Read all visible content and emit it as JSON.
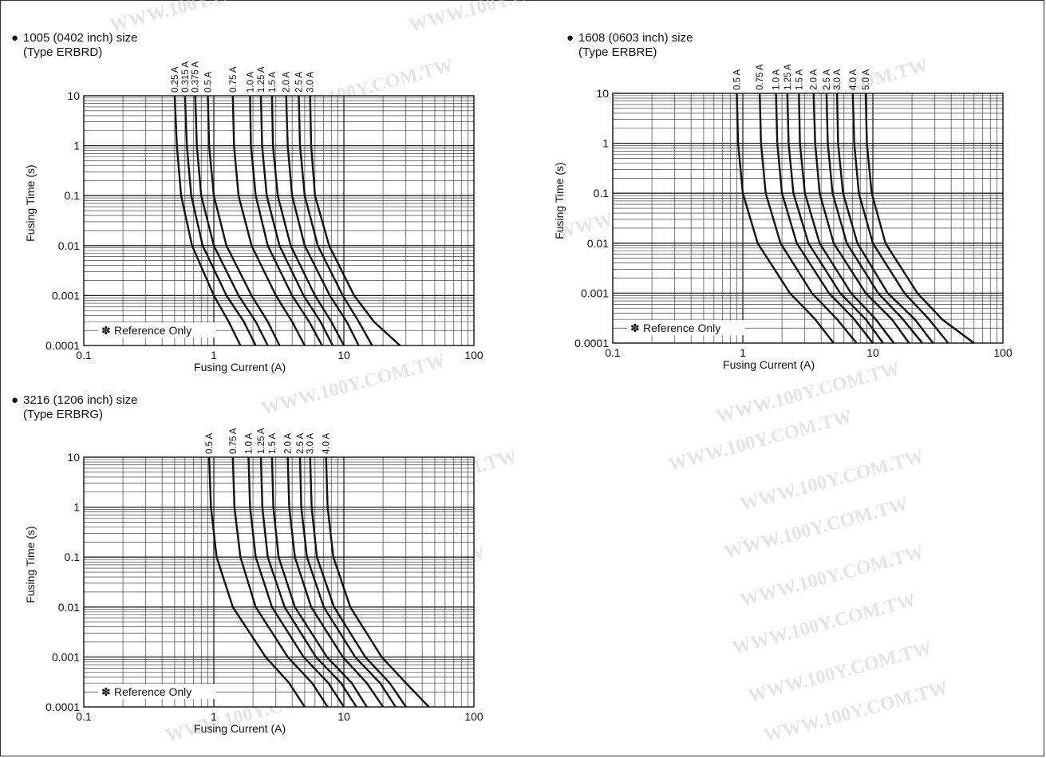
{
  "watermark": {
    "text": "WWW.100Y.COM.TW",
    "color": "#cfcfcf"
  },
  "common": {
    "xlabel": "Fusing Current (A)",
    "ylabel": "Fusing Time (s)",
    "note": "Reference Only",
    "note_mark": "✽",
    "bullet": "●",
    "x_ticks": [
      "0.1",
      "1",
      "10",
      "100"
    ],
    "y_ticks": [
      "10",
      "1",
      "0.1",
      "0.01",
      "0.001",
      "0.0001"
    ]
  },
  "chart_data": [
    {
      "type": "line",
      "title": "1005 (0402 inch) size",
      "subtitle": "(Type ERBRD)",
      "xlabel": "Fusing Current (A)",
      "ylabel": "Fusing Time (s)",
      "x_scale": "log",
      "y_scale": "log",
      "xlim": [
        0.1,
        100
      ],
      "ylim": [
        0.0001,
        10
      ],
      "grid": true,
      "series": [
        {
          "name": "0.25 A",
          "points": [
            [
              0.5,
              10
            ],
            [
              0.52,
              1
            ],
            [
              0.56,
              0.1
            ],
            [
              0.68,
              0.01
            ],
            [
              1.0,
              0.001
            ],
            [
              1.3,
              0.0003
            ],
            [
              1.6,
              0.0001
            ]
          ]
        },
        {
          "name": "0.315 A",
          "points": [
            [
              0.6,
              10
            ],
            [
              0.62,
              1
            ],
            [
              0.67,
              0.1
            ],
            [
              0.82,
              0.01
            ],
            [
              1.25,
              0.001
            ],
            [
              1.7,
              0.0003
            ],
            [
              2.1,
              0.0001
            ]
          ]
        },
        {
          "name": "0.375 A",
          "points": [
            [
              0.72,
              10
            ],
            [
              0.74,
              1
            ],
            [
              0.8,
              0.1
            ],
            [
              1.0,
              0.01
            ],
            [
              1.55,
              0.001
            ],
            [
              2.1,
              0.0003
            ],
            [
              2.6,
              0.0001
            ]
          ]
        },
        {
          "name": "0.5 A",
          "points": [
            [
              0.9,
              10
            ],
            [
              0.92,
              1
            ],
            [
              1.0,
              0.1
            ],
            [
              1.25,
              0.01
            ],
            [
              1.95,
              0.001
            ],
            [
              2.6,
              0.0003
            ],
            [
              3.2,
              0.0001
            ]
          ]
        },
        {
          "name": "0.75 A",
          "points": [
            [
              1.4,
              10
            ],
            [
              1.43,
              1
            ],
            [
              1.55,
              0.1
            ],
            [
              1.95,
              0.01
            ],
            [
              3.0,
              0.001
            ],
            [
              4.0,
              0.0003
            ],
            [
              5.0,
              0.0001
            ]
          ]
        },
        {
          "name": "1.0 A",
          "points": [
            [
              1.9,
              10
            ],
            [
              1.93,
              1
            ],
            [
              2.1,
              0.1
            ],
            [
              2.6,
              0.01
            ],
            [
              4.0,
              0.001
            ],
            [
              5.4,
              0.0003
            ],
            [
              6.8,
              0.0001
            ]
          ]
        },
        {
          "name": "1.25 A",
          "points": [
            [
              2.3,
              10
            ],
            [
              2.35,
              1
            ],
            [
              2.55,
              0.1
            ],
            [
              3.2,
              0.01
            ],
            [
              4.9,
              0.001
            ],
            [
              6.6,
              0.0003
            ],
            [
              8.2,
              0.0001
            ]
          ]
        },
        {
          "name": "1.5 A",
          "points": [
            [
              2.8,
              10
            ],
            [
              2.85,
              1
            ],
            [
              3.1,
              0.1
            ],
            [
              3.9,
              0.01
            ],
            [
              6.0,
              0.001
            ],
            [
              8.0,
              0.0003
            ],
            [
              10,
              0.0001
            ]
          ]
        },
        {
          "name": "2.0 A",
          "points": [
            [
              3.6,
              10
            ],
            [
              3.7,
              1
            ],
            [
              4.0,
              0.1
            ],
            [
              5.0,
              0.01
            ],
            [
              7.8,
              0.001
            ],
            [
              10.5,
              0.0003
            ],
            [
              13,
              0.0001
            ]
          ]
        },
        {
          "name": "2.5 A",
          "points": [
            [
              4.5,
              10
            ],
            [
              4.6,
              1
            ],
            [
              5.0,
              0.1
            ],
            [
              6.3,
              0.01
            ],
            [
              9.8,
              0.001
            ],
            [
              13,
              0.0003
            ],
            [
              16.5,
              0.0001
            ]
          ]
        },
        {
          "name": "3.0 A",
          "points": [
            [
              5.5,
              10
            ],
            [
              5.6,
              1
            ],
            [
              6.0,
              0.1
            ],
            [
              7.7,
              0.01
            ],
            [
              12,
              0.001
            ],
            [
              17,
              0.0003
            ],
            [
              27,
              0.0001
            ]
          ]
        }
      ]
    },
    {
      "type": "line",
      "title": "1608 (0603 inch) size",
      "subtitle": "(Type ERBRE)",
      "xlabel": "Fusing Current (A)",
      "ylabel": "Fusing Time (s)",
      "x_scale": "log",
      "y_scale": "log",
      "xlim": [
        0.1,
        100
      ],
      "ylim": [
        0.0001,
        10
      ],
      "grid": true,
      "series": [
        {
          "name": "0.5 A",
          "points": [
            [
              0.9,
              10
            ],
            [
              0.92,
              1
            ],
            [
              1.0,
              0.1
            ],
            [
              1.3,
              0.01
            ],
            [
              2.3,
              0.001
            ],
            [
              3.6,
              0.0003
            ],
            [
              5.0,
              0.0001
            ]
          ]
        },
        {
          "name": "0.75 A",
          "points": [
            [
              1.35,
              10
            ],
            [
              1.38,
              1
            ],
            [
              1.5,
              0.1
            ],
            [
              1.95,
              0.01
            ],
            [
              3.4,
              0.001
            ],
            [
              5.3,
              0.0003
            ],
            [
              7.5,
              0.0001
            ]
          ]
        },
        {
          "name": "1.0 A",
          "points": [
            [
              1.8,
              10
            ],
            [
              1.84,
              1
            ],
            [
              2.0,
              0.1
            ],
            [
              2.6,
              0.01
            ],
            [
              4.6,
              0.001
            ],
            [
              7.2,
              0.0003
            ],
            [
              10,
              0.0001
            ]
          ]
        },
        {
          "name": "1.25 A",
          "points": [
            [
              2.2,
              10
            ],
            [
              2.25,
              1
            ],
            [
              2.45,
              0.1
            ],
            [
              3.2,
              0.01
            ],
            [
              5.6,
              0.001
            ],
            [
              8.8,
              0.0003
            ],
            [
              12,
              0.0001
            ]
          ]
        },
        {
          "name": "1.5 A",
          "points": [
            [
              2.7,
              10
            ],
            [
              2.75,
              1
            ],
            [
              3.0,
              0.1
            ],
            [
              3.9,
              0.01
            ],
            [
              6.8,
              0.001
            ],
            [
              10.5,
              0.0003
            ],
            [
              14.5,
              0.0001
            ]
          ]
        },
        {
          "name": "2.0 A",
          "points": [
            [
              3.5,
              10
            ],
            [
              3.6,
              1
            ],
            [
              3.9,
              0.1
            ],
            [
              5.0,
              0.01
            ],
            [
              8.8,
              0.001
            ],
            [
              14,
              0.0003
            ],
            [
              19,
              0.0001
            ]
          ]
        },
        {
          "name": "2.5 A",
          "points": [
            [
              4.4,
              10
            ],
            [
              4.5,
              1
            ],
            [
              4.9,
              0.1
            ],
            [
              6.3,
              0.01
            ],
            [
              11,
              0.001
            ],
            [
              17,
              0.0003
            ],
            [
              24,
              0.0001
            ]
          ]
        },
        {
          "name": "3.0 A",
          "points": [
            [
              5.3,
              10
            ],
            [
              5.4,
              1
            ],
            [
              5.9,
              0.1
            ],
            [
              7.6,
              0.01
            ],
            [
              13,
              0.001
            ],
            [
              21,
              0.0003
            ],
            [
              29,
              0.0001
            ]
          ]
        },
        {
          "name": "4.0 A",
          "points": [
            [
              7.0,
              10
            ],
            [
              7.2,
              1
            ],
            [
              7.8,
              0.1
            ],
            [
              10,
              0.01
            ],
            [
              17.5,
              0.001
            ],
            [
              27,
              0.0003
            ],
            [
              38,
              0.0001
            ]
          ]
        },
        {
          "name": "5.0 A",
          "points": [
            [
              8.8,
              10
            ],
            [
              9.0,
              1
            ],
            [
              9.8,
              0.1
            ],
            [
              12.5,
              0.01
            ],
            [
              22,
              0.001
            ],
            [
              34,
              0.0003
            ],
            [
              60,
              0.0001
            ]
          ]
        }
      ]
    },
    {
      "type": "line",
      "title": "3216 (1206 inch) size",
      "subtitle": "(Type ERBRG)",
      "xlabel": "Fusing Current (A)",
      "ylabel": "Fusing Time (s)",
      "x_scale": "log",
      "y_scale": "log",
      "xlim": [
        0.1,
        100
      ],
      "ylim": [
        0.0001,
        10
      ],
      "grid": true,
      "series": [
        {
          "name": "0.5 A",
          "points": [
            [
              0.92,
              10
            ],
            [
              0.95,
              1
            ],
            [
              1.05,
              0.1
            ],
            [
              1.4,
              0.01
            ],
            [
              2.5,
              0.001
            ],
            [
              3.8,
              0.0003
            ],
            [
              5.0,
              0.0001
            ]
          ]
        },
        {
          "name": "0.75 A",
          "points": [
            [
              1.4,
              10
            ],
            [
              1.44,
              1
            ],
            [
              1.6,
              0.1
            ],
            [
              2.1,
              0.01
            ],
            [
              3.7,
              0.001
            ],
            [
              5.7,
              0.0003
            ],
            [
              7.5,
              0.0001
            ]
          ]
        },
        {
          "name": "1.0 A",
          "points": [
            [
              1.85,
              10
            ],
            [
              1.9,
              1
            ],
            [
              2.1,
              0.1
            ],
            [
              2.8,
              0.01
            ],
            [
              4.9,
              0.001
            ],
            [
              7.6,
              0.0003
            ],
            [
              10,
              0.0001
            ]
          ]
        },
        {
          "name": "1.25 A",
          "points": [
            [
              2.3,
              10
            ],
            [
              2.36,
              1
            ],
            [
              2.6,
              0.1
            ],
            [
              3.5,
              0.01
            ],
            [
              6.1,
              0.001
            ],
            [
              9.5,
              0.0003
            ],
            [
              12.5,
              0.0001
            ]
          ]
        },
        {
          "name": "1.5 A",
          "points": [
            [
              2.8,
              10
            ],
            [
              2.87,
              1
            ],
            [
              3.15,
              0.1
            ],
            [
              4.2,
              0.01
            ],
            [
              7.4,
              0.001
            ],
            [
              11.5,
              0.0003
            ],
            [
              15,
              0.0001
            ]
          ]
        },
        {
          "name": "2.0 A",
          "points": [
            [
              3.7,
              10
            ],
            [
              3.8,
              1
            ],
            [
              4.2,
              0.1
            ],
            [
              5.6,
              0.01
            ],
            [
              9.8,
              0.001
            ],
            [
              15,
              0.0003
            ],
            [
              20,
              0.0001
            ]
          ]
        },
        {
          "name": "2.5 A",
          "points": [
            [
              4.6,
              10
            ],
            [
              4.7,
              1
            ],
            [
              5.2,
              0.1
            ],
            [
              7.0,
              0.01
            ],
            [
              12.2,
              0.001
            ],
            [
              19,
              0.0003
            ],
            [
              25,
              0.0001
            ]
          ]
        },
        {
          "name": "3.0 A",
          "points": [
            [
              5.5,
              10
            ],
            [
              5.65,
              1
            ],
            [
              6.2,
              0.1
            ],
            [
              8.4,
              0.01
            ],
            [
              14.6,
              0.001
            ],
            [
              22.5,
              0.0003
            ],
            [
              30,
              0.0001
            ]
          ]
        },
        {
          "name": "4.0 A",
          "points": [
            [
              7.3,
              10
            ],
            [
              7.5,
              1
            ],
            [
              8.3,
              0.1
            ],
            [
              11.2,
              0.01
            ],
            [
              19.5,
              0.001
            ],
            [
              30,
              0.0003
            ],
            [
              45,
              0.0001
            ]
          ]
        }
      ]
    }
  ]
}
